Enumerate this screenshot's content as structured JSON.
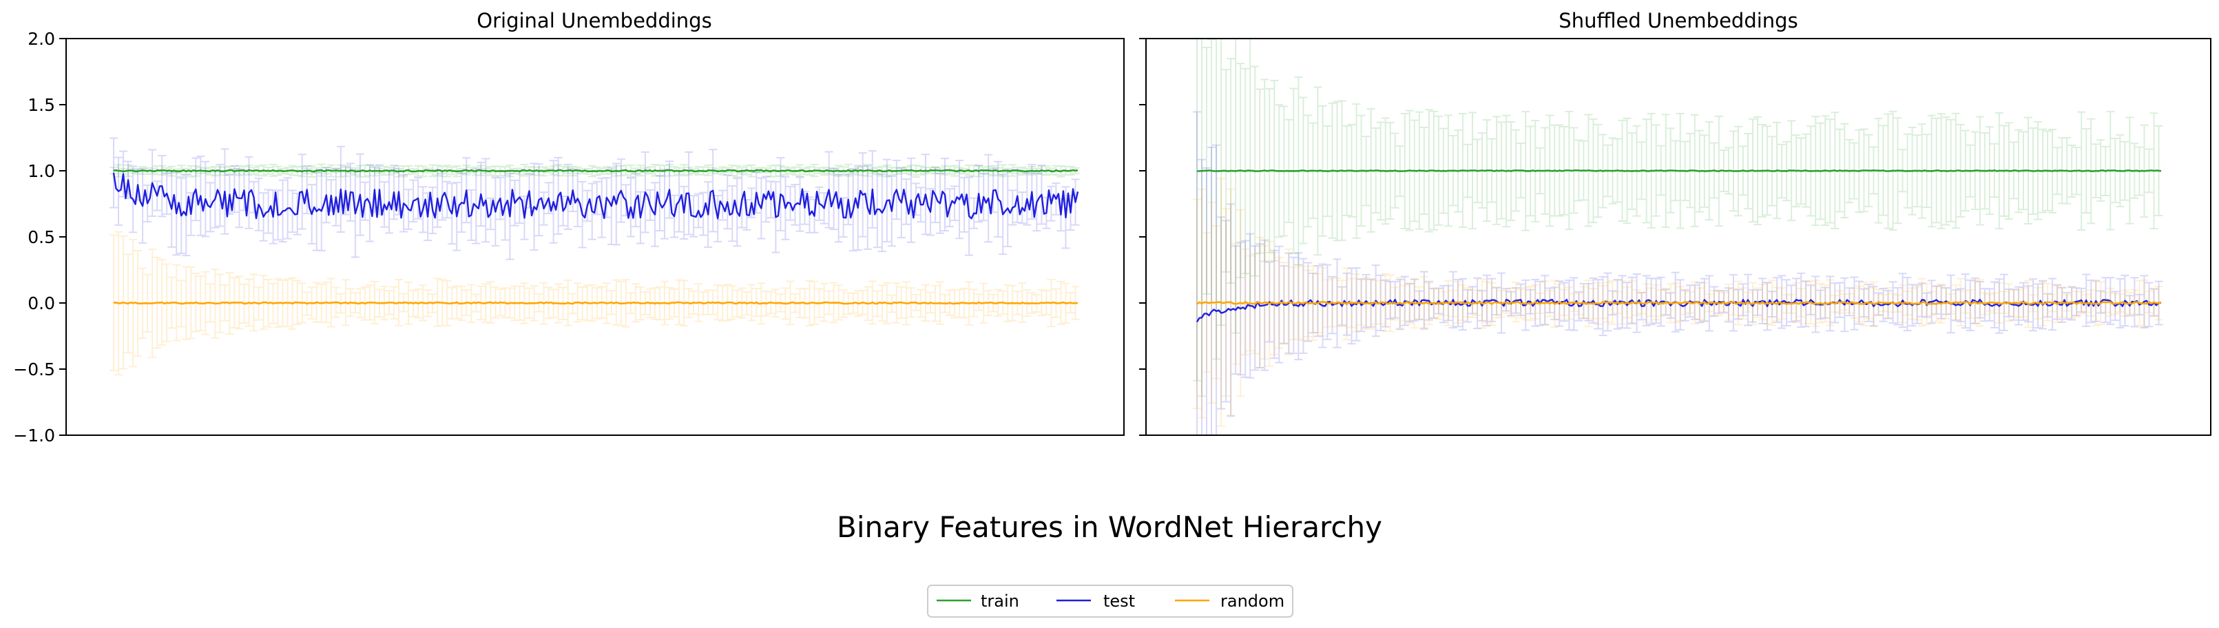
{
  "figure": {
    "suptitle": "Binary Features in WordNet Hierarchy",
    "legend": {
      "placement": "bottom-center",
      "entries": [
        {
          "name": "train",
          "color": "#2ca02c"
        },
        {
          "name": "test",
          "color": "#1f1fe0"
        },
        {
          "name": "random",
          "color": "#ffa500"
        }
      ]
    }
  },
  "chart_data": [
    {
      "type": "line",
      "title": "Original Unembeddings",
      "xlabel": "",
      "ylabel": "",
      "ylim": [
        -1.0,
        2.0
      ],
      "yticks": [
        "2.0",
        "1.5",
        "1.0",
        "0.5",
        "0.0",
        "−0.5",
        "−1.0"
      ],
      "ytick_values": [
        2.0,
        1.5,
        1.0,
        0.5,
        0.0,
        -0.5,
        -1.0
      ],
      "x_ticks_shown": false,
      "grid": false,
      "n_points": 400,
      "series": [
        {
          "name": "train",
          "color": "#2ca02c",
          "mean_level": 1.0,
          "noise": 0.005,
          "errorbar": 0.03
        },
        {
          "name": "test",
          "color": "#1f1fe0",
          "mean_level": 0.75,
          "start_level": 0.95,
          "noise": 0.07,
          "errorbar": 0.22
        },
        {
          "name": "random",
          "color": "#ffa500",
          "mean_level": 0.0,
          "noise": 0.005,
          "errorbar": 0.12,
          "start_errorbar": 0.5
        }
      ]
    },
    {
      "type": "line",
      "title": "Shuffled Unembeddings",
      "xlabel": "",
      "ylabel": "",
      "ylim": [
        -1.0,
        2.0
      ],
      "x_ticks_shown": false,
      "grid": false,
      "sharey": true,
      "n_points": 400,
      "series": [
        {
          "name": "train",
          "color": "#2ca02c",
          "mean_level": 1.0,
          "noise": 0.003,
          "errorbar": 0.3,
          "start_errorbar": 1.5
        },
        {
          "name": "test",
          "color": "#1f1fe0",
          "mean_level": 0.0,
          "start_level": -0.12,
          "noise": 0.025,
          "errorbar": 0.15,
          "start_errorbar": 1.2
        },
        {
          "name": "random",
          "color": "#ffa500",
          "mean_level": 0.0,
          "noise": 0.008,
          "errorbar": 0.12,
          "start_errorbar": 1.0
        }
      ]
    }
  ]
}
